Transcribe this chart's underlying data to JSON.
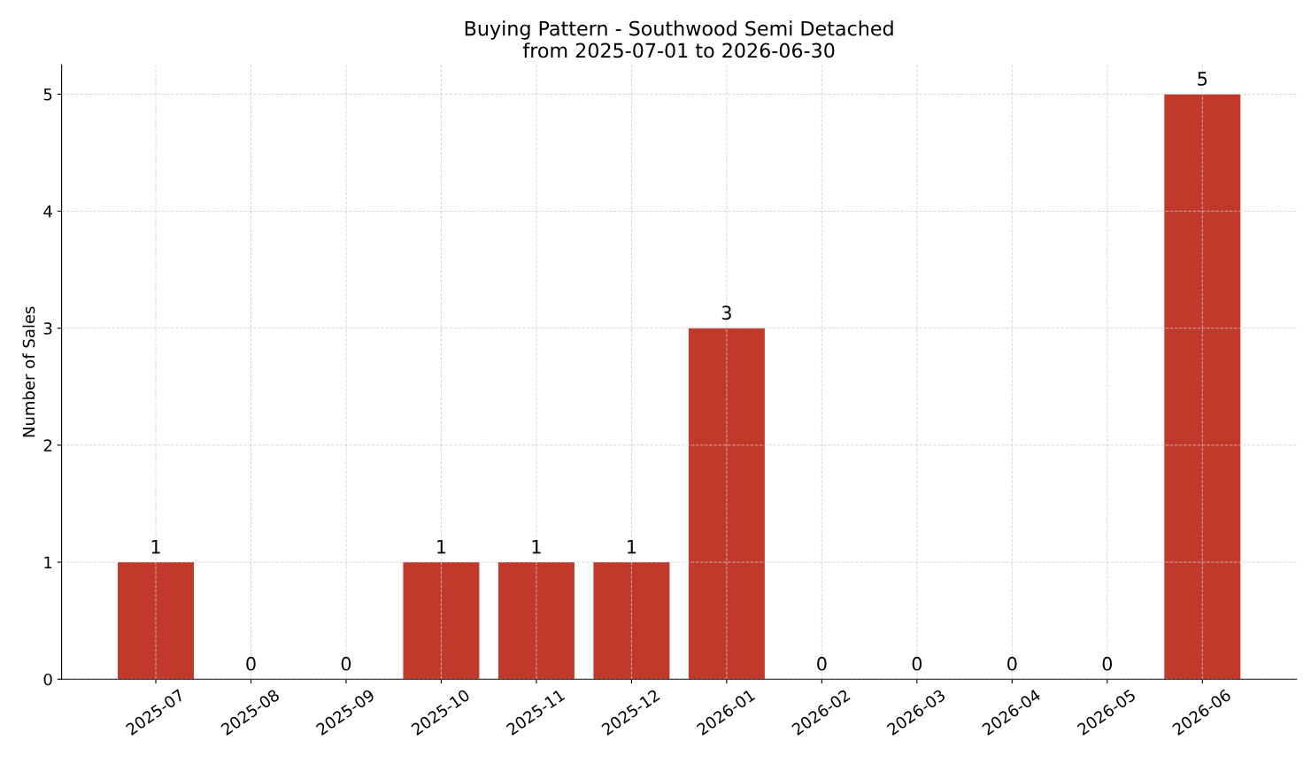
{
  "chart_data": {
    "type": "bar",
    "title": "Buying Pattern - Southwood Semi Detached\nfrom 2025-07-01 to 2026-06-30",
    "ylabel": "Number of Sales",
    "categories": [
      "2025-07",
      "2025-08",
      "2025-09",
      "2025-10",
      "2025-11",
      "2025-12",
      "2026-01",
      "2026-02",
      "2026-03",
      "2026-04",
      "2026-05",
      "2026-06"
    ],
    "values": [
      1,
      0,
      0,
      1,
      1,
      1,
      3,
      0,
      0,
      0,
      0,
      5
    ],
    "color": "#c0392b",
    "ylim": [
      0,
      5.25
    ],
    "yticks": [
      0,
      1,
      2,
      3,
      4,
      5
    ],
    "grid": true,
    "data_labels": true
  }
}
